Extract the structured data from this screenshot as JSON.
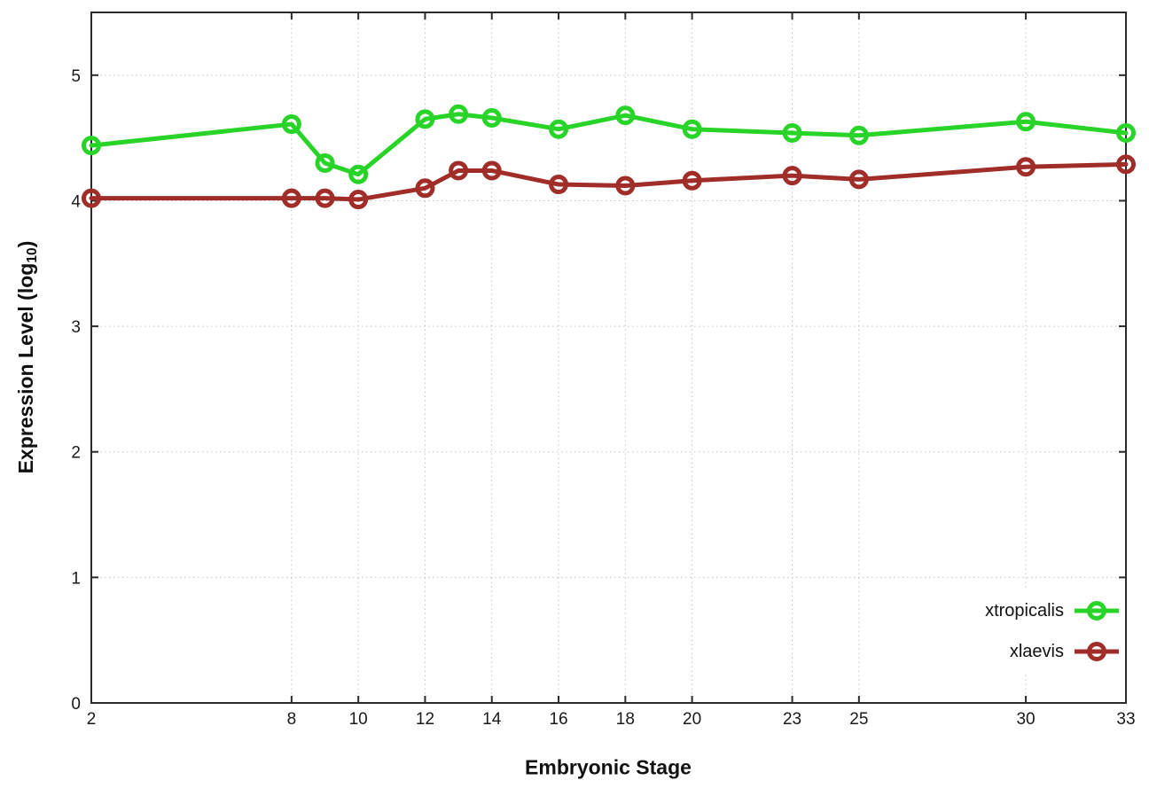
{
  "figure": {
    "background": "#ffffff",
    "border_color": "#2b2b2b",
    "grid_color": "#c4c4c4",
    "text_color": "#1a1a1a"
  },
  "axis_labels": {
    "x": "Embryonic Stage",
    "y_pre": "Expression Level (log",
    "y_sub": "10",
    "y_post": ")"
  },
  "chart_data": {
    "type": "line",
    "title": "",
    "xlabel": "Embryonic Stage",
    "ylabel": "Expression Level (log10)",
    "x": [
      2,
      8,
      9,
      10,
      12,
      13,
      14,
      16,
      18,
      20,
      23,
      25,
      30,
      33
    ],
    "xticks": [
      2,
      8,
      10,
      12,
      14,
      16,
      18,
      20,
      23,
      25,
      30,
      33
    ],
    "yticks": [
      0,
      1,
      2,
      3,
      4,
      5
    ],
    "xlim": [
      2,
      33
    ],
    "ylim": [
      0,
      5.5
    ],
    "grid": true,
    "marker": "open-circle",
    "legend_position": "inside-bottom-right",
    "series": [
      {
        "name": "xtropicalis",
        "color": "#28d428",
        "values": [
          4.44,
          4.61,
          4.3,
          4.21,
          4.65,
          4.69,
          4.66,
          4.57,
          4.68,
          4.57,
          4.54,
          4.52,
          4.63,
          4.54
        ]
      },
      {
        "name": "xlaevis",
        "color": "#a02d28",
        "values": [
          4.02,
          4.02,
          4.02,
          4.01,
          4.1,
          4.24,
          4.24,
          4.13,
          4.12,
          4.16,
          4.2,
          4.17,
          4.27,
          4.29
        ]
      }
    ]
  }
}
